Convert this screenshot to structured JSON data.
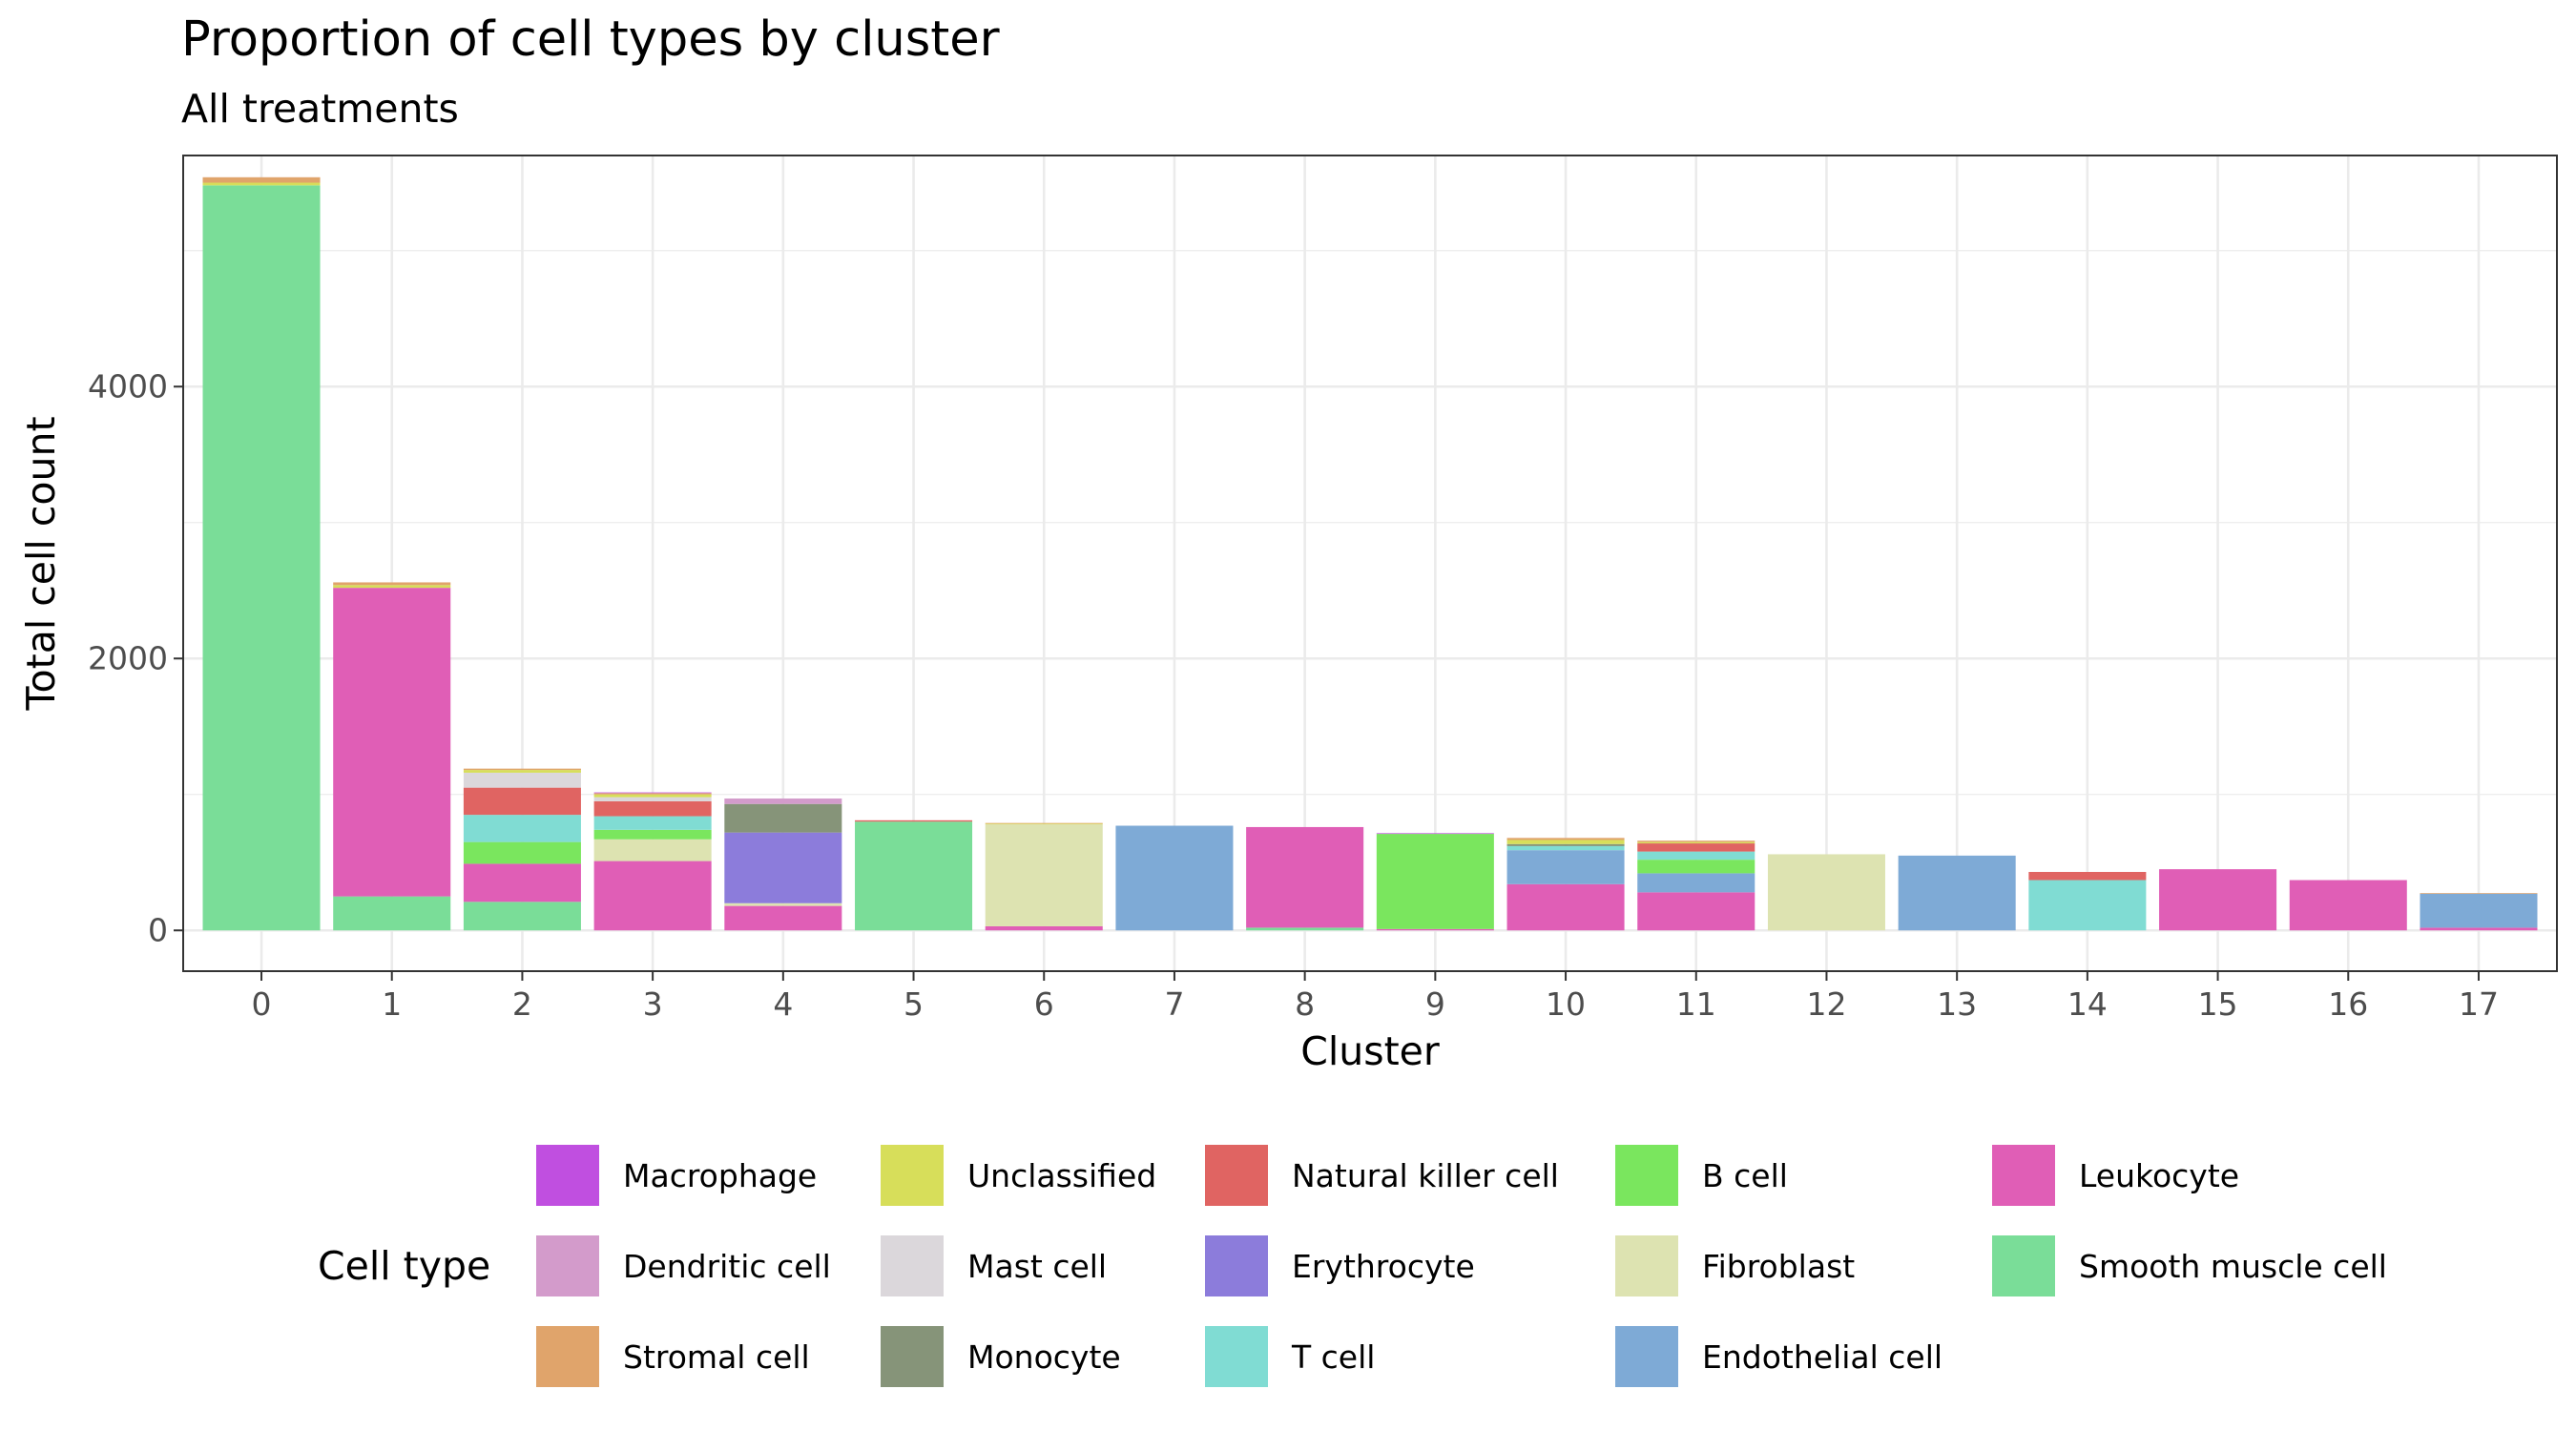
{
  "chart_data": {
    "type": "bar",
    "stacked": true,
    "title": "Proportion of cell types by cluster",
    "subtitle": "All treatments",
    "xlabel": "Cluster",
    "ylabel": "Total cell count",
    "ylim": [
      -300,
      5700
    ],
    "yticks": [
      0,
      2000,
      4000
    ],
    "grid": true,
    "legend": {
      "title": "Cell type",
      "placement": "bottom"
    },
    "categories": [
      "0",
      "1",
      "2",
      "3",
      "4",
      "5",
      "6",
      "7",
      "8",
      "9",
      "10",
      "11",
      "12",
      "13",
      "14",
      "15",
      "16",
      "17"
    ],
    "series": [
      {
        "name": "Macrophage",
        "color": "#C04FE0",
        "values": [
          0,
          0,
          0,
          5,
          0,
          0,
          0,
          0,
          0,
          5,
          0,
          0,
          0,
          0,
          0,
          0,
          0,
          0
        ]
      },
      {
        "name": "Dendritic cell",
        "color": "#D39BCB",
        "values": [
          0,
          0,
          0,
          0,
          40,
          0,
          0,
          0,
          0,
          0,
          0,
          0,
          0,
          0,
          0,
          0,
          0,
          0
        ]
      },
      {
        "name": "Stromal cell",
        "color": "#E0A46B",
        "values": [
          40,
          20,
          10,
          10,
          0,
          0,
          5,
          0,
          0,
          0,
          15,
          10,
          0,
          0,
          0,
          0,
          0,
          5
        ]
      },
      {
        "name": "Unclassified",
        "color": "#D7DE5A",
        "values": [
          20,
          20,
          20,
          20,
          0,
          0,
          5,
          0,
          0,
          0,
          30,
          10,
          0,
          0,
          0,
          0,
          0,
          0
        ]
      },
      {
        "name": "Mast cell",
        "color": "#DBD7DB",
        "values": [
          0,
          0,
          110,
          30,
          0,
          0,
          0,
          0,
          0,
          0,
          0,
          0,
          0,
          0,
          0,
          0,
          0,
          0
        ]
      },
      {
        "name": "Monocyte",
        "color": "#869479",
        "values": [
          0,
          0,
          0,
          0,
          210,
          0,
          0,
          0,
          0,
          0,
          15,
          0,
          0,
          0,
          0,
          0,
          0,
          0
        ]
      },
      {
        "name": "Natural killer cell",
        "color": "#E06462",
        "values": [
          0,
          0,
          200,
          110,
          0,
          10,
          0,
          0,
          0,
          0,
          0,
          60,
          0,
          0,
          60,
          0,
          0,
          0
        ]
      },
      {
        "name": "Erythrocyte",
        "color": "#8C7CDB",
        "values": [
          0,
          0,
          0,
          0,
          520,
          0,
          0,
          0,
          0,
          0,
          0,
          0,
          0,
          0,
          0,
          0,
          0,
          0
        ]
      },
      {
        "name": "T cell",
        "color": "#80DCD3",
        "values": [
          0,
          0,
          200,
          100,
          0,
          0,
          0,
          0,
          0,
          0,
          30,
          60,
          0,
          0,
          370,
          0,
          0,
          0
        ]
      },
      {
        "name": "B cell",
        "color": "#7AE65E",
        "values": [
          0,
          0,
          160,
          70,
          0,
          0,
          0,
          0,
          0,
          700,
          0,
          100,
          0,
          0,
          0,
          0,
          0,
          0
        ]
      },
      {
        "name": "Fibroblast",
        "color": "#DDE3B1",
        "values": [
          0,
          0,
          0,
          160,
          20,
          0,
          750,
          0,
          0,
          0,
          0,
          0,
          560,
          0,
          0,
          0,
          0,
          0
        ]
      },
      {
        "name": "Endothelial cell",
        "color": "#7EAAD6",
        "values": [
          0,
          0,
          0,
          0,
          0,
          0,
          0,
          770,
          0,
          0,
          250,
          140,
          0,
          550,
          0,
          0,
          0,
          250
        ]
      },
      {
        "name": "Leukocyte",
        "color": "#E05EB6",
        "values": [
          0,
          2270,
          280,
          510,
          180,
          0,
          30,
          0,
          740,
          10,
          340,
          280,
          0,
          0,
          0,
          450,
          370,
          20
        ]
      },
      {
        "name": "Smooth muscle cell",
        "color": "#7ADD98",
        "values": [
          5480,
          250,
          210,
          0,
          0,
          800,
          0,
          0,
          20,
          0,
          0,
          0,
          0,
          0,
          0,
          0,
          0,
          0
        ]
      }
    ]
  }
}
